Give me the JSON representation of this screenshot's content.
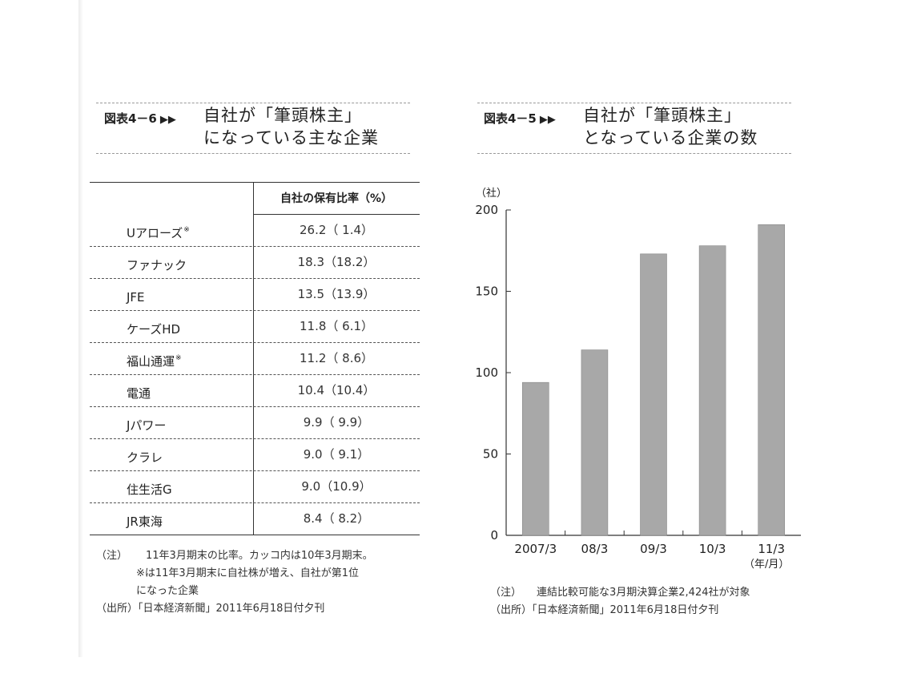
{
  "left_figure": {
    "label": "図表4－6",
    "title_line1": "自社が「筆頭株主」",
    "title_line2": "になっている主な企業",
    "column_header": "自社の保有比率（%）",
    "rows": [
      {
        "name": "Uアローズ",
        "mark": "※",
        "value": "26.2（ 1.4）"
      },
      {
        "name": "ファナック",
        "mark": "",
        "value": "18.3（18.2）"
      },
      {
        "name": "JFE",
        "mark": "",
        "value": "13.5（13.9）"
      },
      {
        "name": "ケーズHD",
        "mark": "",
        "value": "11.8（ 6.1）"
      },
      {
        "name": "福山通運",
        "mark": "※",
        "value": "11.2（ 8.6）"
      },
      {
        "name": "電通",
        "mark": "",
        "value": "10.4（10.4）"
      },
      {
        "name": "Jパワー",
        "mark": "",
        "value": "9.9（ 9.9）"
      },
      {
        "name": "クラレ",
        "mark": "",
        "value": "9.0（ 9.1）"
      },
      {
        "name": "住生活G",
        "mark": "",
        "value": "9.0（10.9）"
      },
      {
        "name": "JR東海",
        "mark": "",
        "value": "8.4（ 8.2）"
      }
    ],
    "note_label": "（注）",
    "note_line1": "11年3月期末の比率。カッコ内は10年3月期末。",
    "note_line2": "※は11年3月期末に自社株が増え、自社が第1位",
    "note_line3": "になった企業",
    "source_label": "（出所）",
    "source_text": "「日本経済新聞」2011年6月18日付夕刊"
  },
  "right_figure": {
    "label": "図表4－5",
    "title_line1": "自社が「筆頭株主」",
    "title_line2": "となっている企業の数",
    "note_label": "（注）",
    "note_text": "連結比較可能な3月期決算企業2,424社が対象",
    "source_label": "（出所）",
    "source_text": "「日本経済新聞」2011年6月18日付夕刊"
  },
  "chart_data": {
    "type": "bar",
    "unit_label": "（社）",
    "x_unit_label": "（年/月）",
    "categories": [
      "2007/3",
      "08/3",
      "09/3",
      "10/3",
      "11/3"
    ],
    "values": [
      94,
      114,
      173,
      178,
      191
    ],
    "ylim": [
      0,
      200
    ],
    "yticks": [
      0,
      50,
      100,
      150,
      200
    ],
    "bar_color": "#a8a8a8",
    "grid": false
  }
}
